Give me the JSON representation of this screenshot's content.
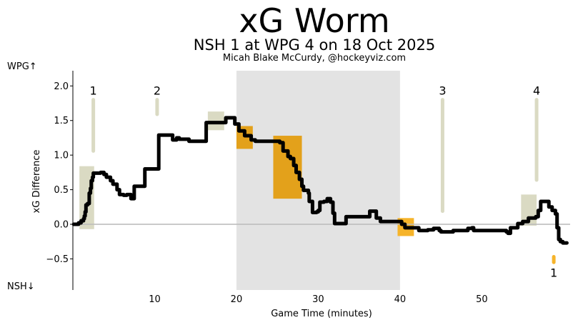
{
  "chart_data": {
    "type": "line",
    "title": "xG Worm",
    "subtitle": "NSH 1 at WPG 4 on 18 Oct 2025",
    "credit": "Micah Blake McCurdy, @hockeyviz.com",
    "xlabel": "Game Time (minutes)",
    "ylabel": "xG Difference",
    "top_team_label": "WPG↑",
    "bottom_team_label": "NSH↓",
    "xlim": [
      0,
      60.8
    ],
    "ylim": [
      -0.95,
      2.22
    ],
    "x_ticks": [
      10,
      20,
      30,
      40,
      50
    ],
    "y_ticks": [
      -0.5,
      0.0,
      0.5,
      1.0,
      1.5,
      2.0
    ],
    "y_tick_labels": [
      "−0.5",
      "0.0",
      "0.5",
      "1.0",
      "1.5",
      "2.0"
    ],
    "zero_line": true,
    "shaded_period": [
      20,
      40
    ],
    "colors": {
      "worm": "#000000",
      "period_shade": "#e3e3e3",
      "goal_marker": "#dadac3",
      "power_play": "#e3a11b",
      "power_play_light": "#f6b42a",
      "zero_line": "#b9b9b9"
    },
    "series": [
      {
        "values": [
          [
            0.1,
            0.0
          ],
          [
            0.7,
            0.02
          ],
          [
            1.0,
            0.05
          ],
          [
            1.3,
            0.08
          ],
          [
            1.4,
            0.12
          ],
          [
            1.5,
            0.18
          ],
          [
            1.6,
            0.28
          ],
          [
            1.8,
            0.3
          ],
          [
            2.0,
            0.45
          ],
          [
            2.15,
            0.52
          ],
          [
            2.25,
            0.63
          ],
          [
            2.4,
            0.68
          ],
          [
            2.5,
            0.74
          ],
          [
            3.4,
            0.75
          ],
          [
            3.8,
            0.72
          ],
          [
            4.1,
            0.68
          ],
          [
            4.6,
            0.63
          ],
          [
            4.9,
            0.58
          ],
          [
            5.4,
            0.5
          ],
          [
            5.7,
            0.43
          ],
          [
            6.2,
            0.42
          ],
          [
            6.6,
            0.43
          ],
          [
            7.1,
            0.37
          ],
          [
            7.5,
            0.55
          ],
          [
            8.8,
            0.8
          ],
          [
            10.1,
            0.8
          ],
          [
            10.5,
            1.29
          ],
          [
            11.9,
            1.29
          ],
          [
            12.2,
            1.22
          ],
          [
            12.7,
            1.25
          ],
          [
            13.0,
            1.23
          ],
          [
            14.2,
            1.2
          ],
          [
            15.4,
            1.2
          ],
          [
            16.3,
            1.47
          ],
          [
            18.3,
            1.47
          ],
          [
            18.7,
            1.54
          ],
          [
            19.5,
            1.54
          ],
          [
            19.8,
            1.45
          ],
          [
            20.3,
            1.35
          ],
          [
            21.0,
            1.28
          ],
          [
            21.8,
            1.22
          ],
          [
            22.3,
            1.2
          ],
          [
            24.9,
            1.2
          ],
          [
            25.3,
            1.18
          ],
          [
            25.7,
            1.06
          ],
          [
            26.3,
            0.98
          ],
          [
            26.6,
            0.95
          ],
          [
            27.0,
            0.85
          ],
          [
            27.3,
            0.75
          ],
          [
            27.7,
            0.65
          ],
          [
            28.0,
            0.55
          ],
          [
            28.2,
            0.49
          ],
          [
            28.8,
            0.45
          ],
          [
            28.9,
            0.33
          ],
          [
            29.3,
            0.17
          ],
          [
            29.8,
            0.18
          ],
          [
            30.0,
            0.2
          ],
          [
            30.2,
            0.32
          ],
          [
            30.7,
            0.33
          ],
          [
            31.1,
            0.37
          ],
          [
            31.5,
            0.32
          ],
          [
            31.8,
            0.16
          ],
          [
            32.0,
            0.01
          ],
          [
            33.0,
            0.01
          ],
          [
            33.4,
            0.11
          ],
          [
            36.1,
            0.11
          ],
          [
            36.3,
            0.19
          ],
          [
            36.8,
            0.19
          ],
          [
            37.1,
            0.09
          ],
          [
            37.3,
            0.09
          ],
          [
            37.6,
            0.04
          ],
          [
            39.7,
            0.04
          ],
          [
            40.2,
            0.0
          ],
          [
            40.6,
            -0.05
          ],
          [
            42.3,
            -0.09
          ],
          [
            43.4,
            -0.08
          ],
          [
            44.1,
            -0.06
          ],
          [
            44.8,
            -0.09
          ],
          [
            45.0,
            -0.11
          ],
          [
            46.1,
            -0.11
          ],
          [
            46.5,
            -0.09
          ],
          [
            47.9,
            -0.09
          ],
          [
            48.3,
            -0.06
          ],
          [
            48.8,
            -0.05
          ],
          [
            49.0,
            -0.09
          ],
          [
            51.5,
            -0.09
          ],
          [
            53.0,
            -0.11
          ],
          [
            53.2,
            -0.13
          ],
          [
            53.5,
            -0.05
          ],
          [
            54.1,
            -0.05
          ],
          [
            54.4,
            0.01
          ],
          [
            55.0,
            0.04
          ],
          [
            55.7,
            0.09
          ],
          [
            56.6,
            0.11
          ],
          [
            56.9,
            0.2
          ],
          [
            57.2,
            0.33
          ],
          [
            57.9,
            0.33
          ],
          [
            58.2,
            0.25
          ],
          [
            58.6,
            0.2
          ],
          [
            59.0,
            0.15
          ],
          [
            59.2,
            -0.05
          ],
          [
            59.4,
            -0.22
          ],
          [
            59.6,
            -0.25
          ],
          [
            59.9,
            -0.27
          ],
          [
            60.4,
            -0.27
          ]
        ]
      }
    ],
    "goals": [
      {
        "label": "1",
        "team": "WPG",
        "x": 2.5,
        "marker_top": 1.8,
        "marker_bottom": 1.06
      },
      {
        "label": "2",
        "team": "WPG",
        "x": 10.3,
        "marker_top": 1.8,
        "marker_bottom": 1.59
      },
      {
        "label": "3",
        "team": "WPG",
        "x": 45.2,
        "marker_top": 1.8,
        "marker_bottom": 0.19
      },
      {
        "label": "4",
        "team": "WPG",
        "x": 56.7,
        "marker_top": 1.8,
        "marker_bottom": 0.64
      },
      {
        "label": "1",
        "team": "NSH",
        "x": 58.8,
        "marker_top": -0.47,
        "marker_bottom": -0.55
      }
    ],
    "shaded_boxes": [
      {
        "kind": "goal_shot",
        "x0": 0.8,
        "x1": 2.6,
        "y0": -0.07,
        "y1": 0.84
      },
      {
        "kind": "goal_shot",
        "x0": 16.5,
        "x1": 18.5,
        "y0": 1.36,
        "y1": 1.63
      },
      {
        "kind": "goal_shot",
        "x0": 54.8,
        "x1": 56.7,
        "y0": -0.02,
        "y1": 0.43
      },
      {
        "kind": "power_play",
        "x0": 20.0,
        "x1": 22.0,
        "y0": 1.09,
        "y1": 1.42
      },
      {
        "kind": "power_play",
        "x0": 24.5,
        "x1": 28.0,
        "y0": 0.37,
        "y1": 1.28
      },
      {
        "kind": "power_play_light",
        "x0": 39.7,
        "x1": 41.7,
        "y0": -0.17,
        "y1": 0.09
      }
    ]
  }
}
